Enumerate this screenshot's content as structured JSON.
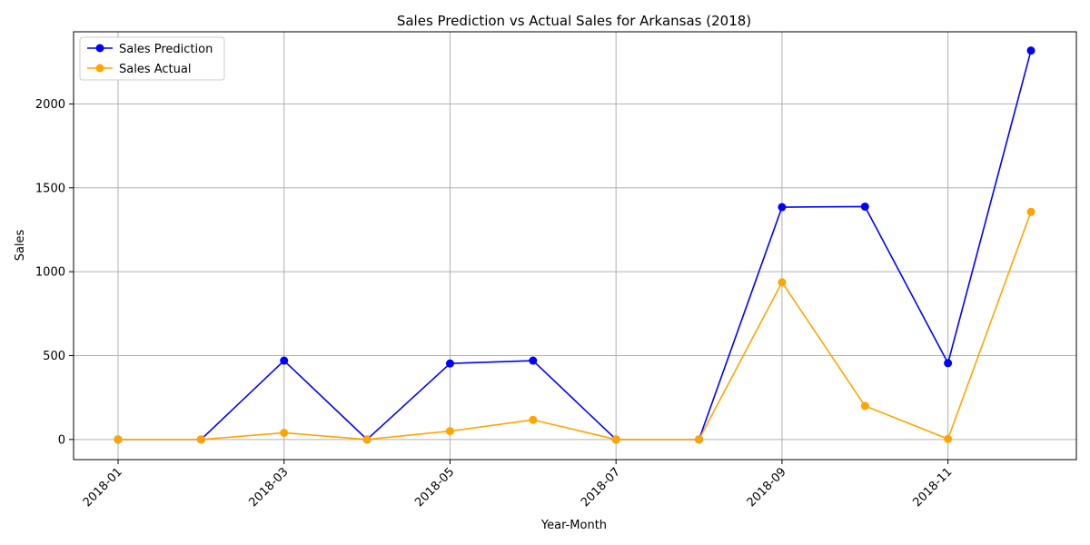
{
  "chart_data": {
    "type": "line",
    "title": "Sales Prediction vs Actual Sales for Arkansas (2018)",
    "xlabel": "Year-Month",
    "ylabel": "Sales",
    "x": [
      "2018-01",
      "2018-02",
      "2018-03",
      "2018-04",
      "2018-05",
      "2018-06",
      "2018-07",
      "2018-08",
      "2018-09",
      "2018-10",
      "2018-11",
      "2018-12"
    ],
    "x_ticks": [
      "2018-01",
      "2018-03",
      "2018-05",
      "2018-07",
      "2018-09",
      "2018-11"
    ],
    "y_ticks": [
      0,
      500,
      1000,
      1500,
      2000
    ],
    "ylim": [
      -120,
      2430
    ],
    "grid": true,
    "legend_position": "top-left",
    "series": [
      {
        "name": "Sales Prediction",
        "color": "#0000ff",
        "values": [
          0,
          0,
          470,
          0,
          453,
          470,
          0,
          0,
          1385,
          1388,
          455,
          2318
        ]
      },
      {
        "name": "Sales Actual",
        "color": "#ffa500",
        "values": [
          0,
          0,
          40,
          0,
          50,
          117,
          0,
          0,
          937,
          200,
          3,
          1357
        ]
      }
    ]
  }
}
